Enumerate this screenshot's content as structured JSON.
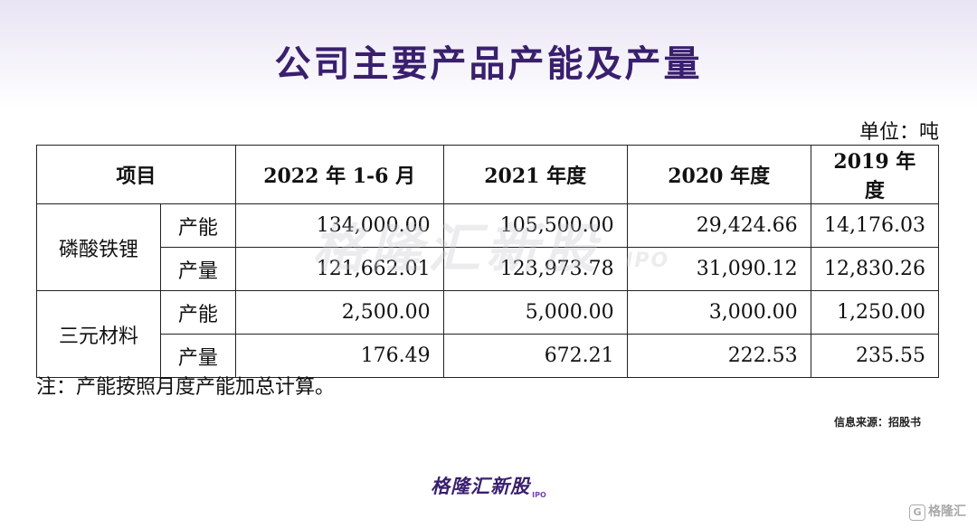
{
  "title": "公司主要产品产能及产量",
  "unit": "单位：吨",
  "table": {
    "headers": [
      "项目",
      "2022 年 1-6 月",
      "2021 年度",
      "2020 年度",
      "2019 年度"
    ],
    "rows": [
      {
        "category": "磷酸铁锂",
        "metric": "产能",
        "values": [
          "134,000.00",
          "105,500.00",
          "29,424.66",
          "14,176.03"
        ]
      },
      {
        "category": "磷酸铁锂",
        "metric": "产量",
        "values": [
          "121,662.01",
          "123,973.78",
          "31,090.12",
          "12,830.26"
        ]
      },
      {
        "category": "三元材料",
        "metric": "产能",
        "values": [
          "2,500.00",
          "5,000.00",
          "3,000.00",
          "1,250.00"
        ]
      },
      {
        "category": "三元材料",
        "metric": "产量",
        "values": [
          "176.49",
          "672.21",
          "222.53",
          "235.55"
        ]
      }
    ]
  },
  "note": "注：产能按照月度产能加总计算。",
  "source": "信息来源：招股书",
  "logo": {
    "main": "格隆汇新股",
    "sub": "IPO"
  },
  "watermark": {
    "main": "格隆汇新股",
    "sub": "IPO"
  },
  "corner": {
    "icon": "G",
    "text": "格隆汇"
  },
  "colors": {
    "title": "#3a1f6e",
    "logo_accent": "#7a3fb0"
  }
}
